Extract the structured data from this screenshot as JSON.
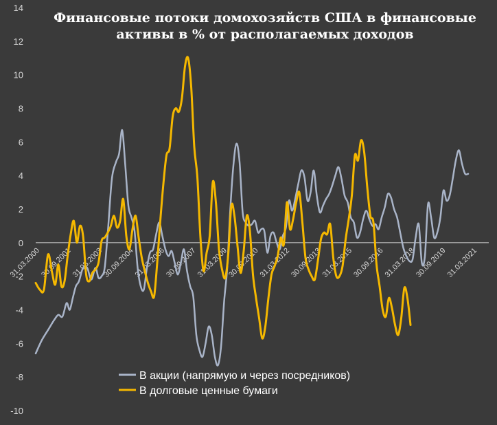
{
  "chart_data": {
    "type": "line",
    "title_lines": [
      "Финансовые потоки домохозяйств США в финансовые",
      "активы в % от располагаемых доходов"
    ],
    "ylim": [
      -10,
      14
    ],
    "yticks": [
      "14",
      "12",
      "10",
      "8",
      "6",
      "4",
      "2",
      "0",
      "-2",
      "-4",
      "-6",
      "-8",
      "-10"
    ],
    "grid": false,
    "legend_position": "bottom-center",
    "x_tick_labels": [
      "31.03.2000",
      "30.09.2001",
      "31.03.2003",
      "30.09.2004",
      "31.03.2006",
      "30.09.2007",
      "31.03.2009",
      "30.09.2010",
      "31.03.2012",
      "30.09.2013",
      "31.03.2015",
      "30.09.2016",
      "31.03.2018",
      "30.09.2019",
      "31.03.2021"
    ],
    "x_range": [
      2000.0,
      2022.0
    ],
    "series": [
      {
        "name": "В акции (напрямую и через посредников)",
        "color": "#a9b4c8",
        "points": [
          [
            2000.0,
            -6.6
          ],
          [
            2000.3,
            -5.8
          ],
          [
            2000.6,
            -5.2
          ],
          [
            2000.9,
            -4.6
          ],
          [
            2001.1,
            -4.3
          ],
          [
            2001.3,
            -4.4
          ],
          [
            2001.5,
            -3.6
          ],
          [
            2001.65,
            -4.0
          ],
          [
            2001.8,
            -3.3
          ],
          [
            2001.95,
            -2.6
          ],
          [
            2002.1,
            -2.3
          ],
          [
            2002.3,
            -1.5
          ],
          [
            2002.5,
            -1.5
          ],
          [
            2002.7,
            -2.2
          ],
          [
            2002.9,
            -1.5
          ],
          [
            2003.05,
            -2.1
          ],
          [
            2003.2,
            -2.0
          ],
          [
            2003.35,
            -1.5
          ],
          [
            2003.5,
            0.6
          ],
          [
            2003.7,
            3.8
          ],
          [
            2003.9,
            4.8
          ],
          [
            2004.05,
            5.3
          ],
          [
            2004.2,
            6.7
          ],
          [
            2004.35,
            4.6
          ],
          [
            2004.5,
            2.2
          ],
          [
            2004.65,
            1.5
          ],
          [
            2004.8,
            0.7
          ],
          [
            2004.95,
            -1.5
          ],
          [
            2005.1,
            -2.6
          ],
          [
            2005.25,
            -2.8
          ],
          [
            2005.4,
            -1.5
          ],
          [
            2005.55,
            -0.6
          ],
          [
            2005.7,
            -0.4
          ],
          [
            2005.85,
            0.5
          ],
          [
            2006.0,
            1.2
          ],
          [
            2006.15,
            0.4
          ],
          [
            2006.3,
            -0.4
          ],
          [
            2006.45,
            -0.8
          ],
          [
            2006.6,
            -0.5
          ],
          [
            2006.75,
            -1.2
          ],
          [
            2006.9,
            -1.9
          ],
          [
            2007.05,
            -1.2
          ],
          [
            2007.2,
            -0.4
          ],
          [
            2007.35,
            -1.7
          ],
          [
            2007.5,
            -2.6
          ],
          [
            2007.65,
            -3.2
          ],
          [
            2007.8,
            -5.5
          ],
          [
            2007.95,
            -6.4
          ],
          [
            2008.1,
            -6.8
          ],
          [
            2008.25,
            -6.0
          ],
          [
            2008.4,
            -5.0
          ],
          [
            2008.55,
            -5.5
          ],
          [
            2008.7,
            -6.8
          ],
          [
            2008.85,
            -7.3
          ],
          [
            2009.0,
            -6.2
          ],
          [
            2009.15,
            -3.5
          ],
          [
            2009.3,
            -1.5
          ],
          [
            2009.45,
            2.0
          ],
          [
            2009.6,
            4.6
          ],
          [
            2009.75,
            5.9
          ],
          [
            2009.9,
            4.8
          ],
          [
            2010.05,
            1.8
          ],
          [
            2010.2,
            1.2
          ],
          [
            2010.35,
            1.0
          ],
          [
            2010.5,
            1.1
          ],
          [
            2010.65,
            1.3
          ],
          [
            2010.8,
            0.6
          ],
          [
            2010.95,
            0.8
          ],
          [
            2011.1,
            0.7
          ],
          [
            2011.25,
            -0.6
          ],
          [
            2011.4,
            0.4
          ],
          [
            2011.55,
            0.6
          ],
          [
            2011.7,
            0.0
          ],
          [
            2011.85,
            -0.4
          ],
          [
            2012.0,
            0.4
          ],
          [
            2012.15,
            0.9
          ],
          [
            2012.3,
            2.5
          ],
          [
            2012.45,
            1.9
          ],
          [
            2012.6,
            2.6
          ],
          [
            2012.75,
            3.5
          ],
          [
            2012.9,
            4.3
          ],
          [
            2013.05,
            3.9
          ],
          [
            2013.2,
            2.5
          ],
          [
            2013.35,
            3.0
          ],
          [
            2013.5,
            4.3
          ],
          [
            2013.65,
            2.8
          ],
          [
            2013.8,
            1.8
          ],
          [
            2013.95,
            2.2
          ],
          [
            2014.1,
            2.6
          ],
          [
            2014.25,
            2.9
          ],
          [
            2014.4,
            3.4
          ],
          [
            2014.55,
            4.0
          ],
          [
            2014.7,
            4.5
          ],
          [
            2014.85,
            3.8
          ],
          [
            2015.0,
            2.8
          ],
          [
            2015.15,
            2.4
          ],
          [
            2015.3,
            1.5
          ],
          [
            2015.45,
            1.2
          ],
          [
            2015.6,
            0.3
          ],
          [
            2015.75,
            0.6
          ],
          [
            2015.9,
            1.4
          ],
          [
            2016.05,
            1.9
          ],
          [
            2016.2,
            1.4
          ],
          [
            2016.35,
            1.0
          ],
          [
            2016.5,
            1.1
          ],
          [
            2016.65,
            0.8
          ],
          [
            2016.8,
            1.5
          ],
          [
            2016.95,
            2.1
          ],
          [
            2017.1,
            2.9
          ],
          [
            2017.25,
            2.7
          ],
          [
            2017.4,
            2.0
          ],
          [
            2017.55,
            1.5
          ],
          [
            2017.7,
            0.6
          ],
          [
            2017.85,
            -0.3
          ],
          [
            2018.0,
            -0.8
          ],
          [
            2018.15,
            -1.1
          ],
          [
            2018.3,
            -1.0
          ],
          [
            2018.45,
            0.3
          ],
          [
            2018.6,
            1.1
          ],
          [
            2018.75,
            -1.2
          ],
          [
            2018.9,
            -0.8
          ],
          [
            2019.05,
            2.3
          ],
          [
            2019.2,
            1.5
          ],
          [
            2019.35,
            0.3
          ],
          [
            2019.5,
            0.6
          ],
          [
            2019.65,
            1.5
          ],
          [
            2019.8,
            3.1
          ],
          [
            2019.95,
            2.5
          ],
          [
            2020.1,
            2.8
          ],
          [
            2020.25,
            3.8
          ],
          [
            2020.4,
            4.9
          ],
          [
            2020.55,
            5.5
          ],
          [
            2020.7,
            4.7
          ],
          [
            2020.85,
            4.1
          ],
          [
            2021.0,
            4.1
          ]
        ]
      },
      {
        "name": "В долговые ценные бумаги",
        "color": "#f5b800",
        "points": [
          [
            2000.0,
            -2.4
          ],
          [
            2000.2,
            -2.8
          ],
          [
            2000.4,
            -2.8
          ],
          [
            2000.6,
            -0.7
          ],
          [
            2000.8,
            -1.8
          ],
          [
            2000.95,
            -2.5
          ],
          [
            2001.1,
            -1.3
          ],
          [
            2001.25,
            -2.6
          ],
          [
            2001.4,
            -2.3
          ],
          [
            2001.55,
            -0.8
          ],
          [
            2001.7,
            0.5
          ],
          [
            2001.85,
            1.3
          ],
          [
            2002.0,
            0.0
          ],
          [
            2002.15,
            1.0
          ],
          [
            2002.3,
            0.4
          ],
          [
            2002.45,
            -1.9
          ],
          [
            2002.6,
            -2.3
          ],
          [
            2002.75,
            -1.8
          ],
          [
            2002.9,
            -1.6
          ],
          [
            2003.05,
            -1.2
          ],
          [
            2003.2,
            0.1
          ],
          [
            2003.35,
            0.3
          ],
          [
            2003.5,
            0.6
          ],
          [
            2003.65,
            1.0
          ],
          [
            2003.8,
            1.6
          ],
          [
            2003.95,
            0.9
          ],
          [
            2004.1,
            1.3
          ],
          [
            2004.25,
            2.6
          ],
          [
            2004.4,
            0.4
          ],
          [
            2004.55,
            -0.4
          ],
          [
            2004.7,
            0.8
          ],
          [
            2004.85,
            1.6
          ],
          [
            2005.0,
            0.3
          ],
          [
            2005.15,
            -0.9
          ],
          [
            2005.3,
            -1.7
          ],
          [
            2005.45,
            -2.4
          ],
          [
            2005.6,
            -2.9
          ],
          [
            2005.75,
            -3.2
          ],
          [
            2005.9,
            -1.2
          ],
          [
            2006.05,
            1.3
          ],
          [
            2006.2,
            3.5
          ],
          [
            2006.35,
            5.2
          ],
          [
            2006.5,
            5.6
          ],
          [
            2006.65,
            7.5
          ],
          [
            2006.8,
            8.0
          ],
          [
            2006.95,
            7.8
          ],
          [
            2007.1,
            8.6
          ],
          [
            2007.25,
            10.5
          ],
          [
            2007.4,
            11.0
          ],
          [
            2007.55,
            9.3
          ],
          [
            2007.7,
            5.7
          ],
          [
            2007.85,
            3.9
          ],
          [
            2008.0,
            0.3
          ],
          [
            2008.15,
            -1.7
          ],
          [
            2008.3,
            -0.6
          ],
          [
            2008.45,
            0.4
          ],
          [
            2008.6,
            3.6
          ],
          [
            2008.75,
            2.4
          ],
          [
            2008.9,
            -0.4
          ],
          [
            2009.05,
            -1.6
          ],
          [
            2009.2,
            -2.1
          ],
          [
            2009.35,
            -0.7
          ],
          [
            2009.5,
            2.2
          ],
          [
            2009.65,
            1.6
          ],
          [
            2009.8,
            -0.2
          ],
          [
            2009.95,
            -1.8
          ],
          [
            2010.1,
            -0.5
          ],
          [
            2010.25,
            1.6
          ],
          [
            2010.4,
            0.7
          ],
          [
            2010.55,
            -1.9
          ],
          [
            2010.7,
            -3.3
          ],
          [
            2010.85,
            -4.5
          ],
          [
            2011.0,
            -5.7
          ],
          [
            2011.15,
            -5.0
          ],
          [
            2011.3,
            -3.3
          ],
          [
            2011.45,
            -1.9
          ],
          [
            2011.6,
            -1.4
          ],
          [
            2011.75,
            -0.8
          ],
          [
            2011.9,
            0.3
          ],
          [
            2012.05,
            -0.1
          ],
          [
            2012.2,
            2.4
          ],
          [
            2012.35,
            0.8
          ],
          [
            2012.5,
            1.4
          ],
          [
            2012.65,
            2.4
          ],
          [
            2012.8,
            3.0
          ],
          [
            2012.95,
            1.2
          ],
          [
            2013.1,
            -0.9
          ],
          [
            2013.25,
            -1.6
          ],
          [
            2013.4,
            -2.0
          ],
          [
            2013.55,
            -2.2
          ],
          [
            2013.7,
            -1.1
          ],
          [
            2013.85,
            0.2
          ],
          [
            2014.0,
            0.6
          ],
          [
            2014.15,
            0.5
          ],
          [
            2014.3,
            1.1
          ],
          [
            2014.45,
            -0.9
          ],
          [
            2014.6,
            -2.0
          ],
          [
            2014.75,
            -2.0
          ],
          [
            2014.9,
            -1.4
          ],
          [
            2015.05,
            0.2
          ],
          [
            2015.2,
            1.4
          ],
          [
            2015.35,
            2.8
          ],
          [
            2015.5,
            5.2
          ],
          [
            2015.65,
            4.9
          ],
          [
            2015.8,
            6.1
          ],
          [
            2015.95,
            5.4
          ],
          [
            2016.1,
            3.3
          ],
          [
            2016.25,
            1.6
          ],
          [
            2016.4,
            1.2
          ],
          [
            2016.55,
            -1.3
          ],
          [
            2016.7,
            -2.6
          ],
          [
            2016.85,
            -4.0
          ],
          [
            2017.0,
            -4.4
          ],
          [
            2017.15,
            -3.3
          ],
          [
            2017.3,
            -3.9
          ],
          [
            2017.45,
            -4.9
          ],
          [
            2017.6,
            -5.5
          ],
          [
            2017.75,
            -4.5
          ],
          [
            2017.9,
            -2.7
          ],
          [
            2018.05,
            -3.3
          ],
          [
            2018.2,
            -4.9
          ]
        ]
      }
    ]
  }
}
